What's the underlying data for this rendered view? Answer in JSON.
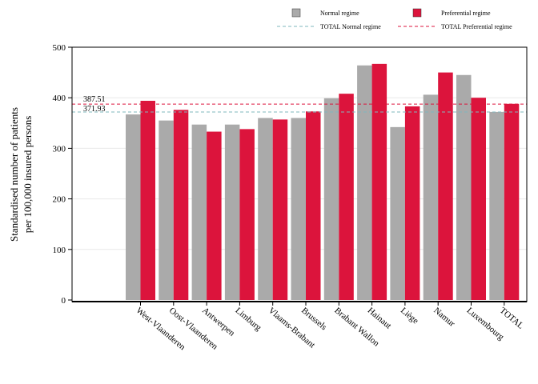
{
  "chart_data": {
    "type": "bar",
    "categories": [
      "West-Vlaanderen",
      "Oost-Vlaanderen",
      "Antwerpen",
      "Limburg",
      "Vlaams-Brabant",
      "Brussels",
      "Brabant Wallon",
      "Hainaut",
      "Liège",
      "Namur",
      "Luxembourg",
      "TOTAL"
    ],
    "series": [
      {
        "name": "Normal regime",
        "color": "#aaaaaa",
        "values": [
          367,
          355,
          347,
          347,
          360,
          360,
          399,
          464,
          342,
          406,
          445,
          372
        ]
      },
      {
        "name": "Preferential regime",
        "color": "#dc143c",
        "values": [
          394,
          376,
          333,
          338,
          357,
          373,
          408,
          467,
          383,
          450,
          400,
          388
        ]
      }
    ],
    "reference_lines": [
      {
        "name": "TOTAL Normal regime",
        "value": 371.93,
        "label": "371.93",
        "color": "#7fb7be",
        "style": "dashed"
      },
      {
        "name": "TOTAL Preferential regime",
        "value": 387.51,
        "label": "387.51",
        "color": "#dc143c",
        "style": "dashed"
      }
    ],
    "title": "",
    "xlabel": "",
    "ylabel": [
      "Standardised number of patients",
      "per 100,000 insured persons"
    ],
    "ylim": [
      0,
      500
    ],
    "yticks": [
      0,
      100,
      200,
      300,
      400,
      500
    ],
    "grid": true,
    "legend_position": "top-right"
  }
}
